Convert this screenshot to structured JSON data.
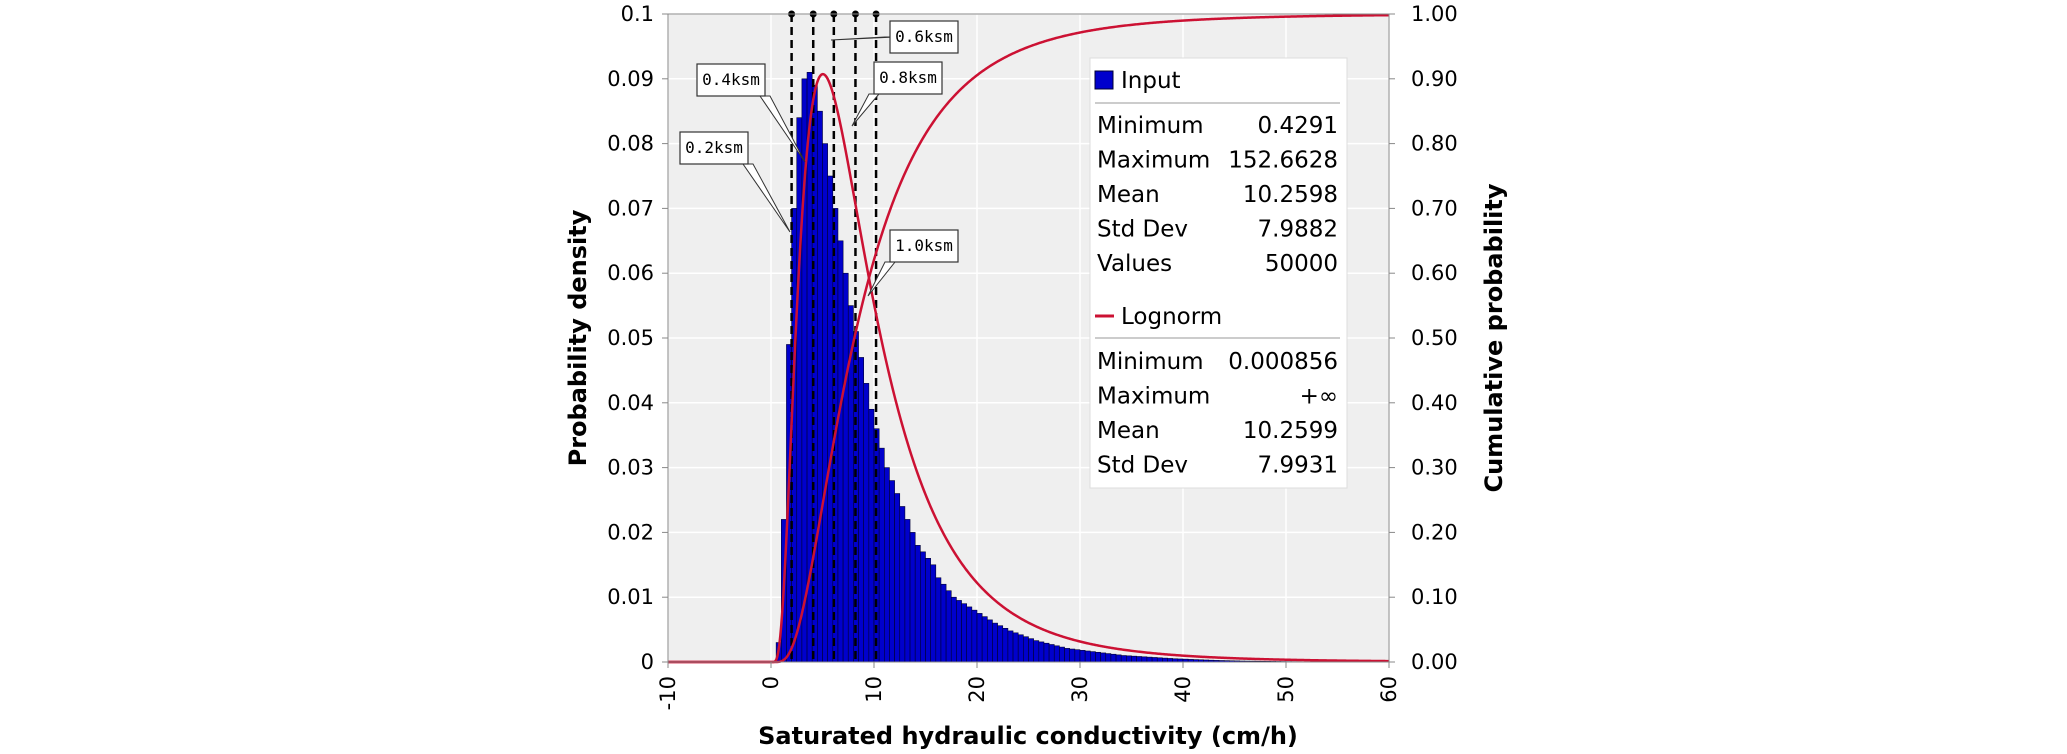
{
  "chart_data": {
    "type": "histogram",
    "xlabel": "Saturated hydraulic conductivity (cm/h)",
    "ylabel": "Probability density",
    "y2label": "Cumulative probability",
    "xlim": [
      -10,
      60
    ],
    "ylim": [
      0,
      0.1
    ],
    "y2lim": [
      0,
      1
    ],
    "x_ticks": [
      "-10",
      "0",
      "10",
      "20",
      "30",
      "40",
      "50",
      "60"
    ],
    "y_ticks": [
      "0",
      "0.01",
      "0.02",
      "0.03",
      "0.04",
      "0.05",
      "0.06",
      "0.07",
      "0.08",
      "0.09",
      "0.1"
    ],
    "y2_ticks": [
      "0.00",
      "0.10",
      "0.20",
      "0.30",
      "0.40",
      "0.50",
      "0.60",
      "0.70",
      "0.80",
      "0.90",
      "1.00"
    ],
    "grid": true,
    "bar_color": "#0000cc",
    "curve_color": "#cc1133",
    "histogram": {
      "name": "Input",
      "bin_start": 0.5,
      "bin_width": 0.5,
      "values": [
        0.003,
        0.022,
        0.049,
        0.07,
        0.084,
        0.09,
        0.091,
        0.089,
        0.085,
        0.08,
        0.075,
        0.07,
        0.065,
        0.06,
        0.055,
        0.051,
        0.047,
        0.043,
        0.039,
        0.036,
        0.033,
        0.03,
        0.028,
        0.026,
        0.024,
        0.022,
        0.02,
        0.018,
        0.017,
        0.016,
        0.015,
        0.013,
        0.012,
        0.011,
        0.01,
        0.0095,
        0.009,
        0.0085,
        0.008,
        0.0075,
        0.007,
        0.0065,
        0.006,
        0.0056,
        0.0052,
        0.0048,
        0.0045,
        0.0042,
        0.0039,
        0.0036,
        0.0033,
        0.0031,
        0.0029,
        0.0027,
        0.0025,
        0.0023,
        0.0021,
        0.002,
        0.0019,
        0.0018,
        0.0017,
        0.0016,
        0.0015,
        0.0014,
        0.0013,
        0.0012,
        0.0011,
        0.001,
        0.00095,
        0.0009,
        0.00085,
        0.0008,
        0.00075,
        0.0007,
        0.00065,
        0.0006,
        0.00055,
        0.0005,
        0.00047,
        0.00044,
        0.0004,
        0.00037,
        0.00034,
        0.00031,
        0.00028,
        0.00025,
        0.00023,
        0.00021,
        0.00019,
        0.00017,
        0.00015,
        0.00014,
        0.00013,
        0.00012,
        0.00011,
        0.0001,
        9e-05,
        8e-05,
        7e-05,
        6e-05,
        5e-05,
        4e-05
      ]
    },
    "fit": {
      "name": "Lognorm",
      "mean": 10.2599,
      "std_dev": 7.9931
    },
    "markers": [
      {
        "label": "0.2ksm",
        "x": 2.0
      },
      {
        "label": "0.4ksm",
        "x": 4.1
      },
      {
        "label": "0.6ksm",
        "x": 6.1
      },
      {
        "label": "0.8ksm",
        "x": 8.2
      },
      {
        "label": "1.0ksm",
        "x": 10.2
      }
    ],
    "legend": {
      "input_name": "Input",
      "input_stats": [
        {
          "label": "Minimum",
          "value": "0.4291"
        },
        {
          "label": "Maximum",
          "value": "152.6628"
        },
        {
          "label": "Mean",
          "value": "10.2598"
        },
        {
          "label": "Std Dev",
          "value": "7.9882"
        },
        {
          "label": "Values",
          "value": "50000"
        }
      ],
      "fit_name": "Lognorm",
      "fit_stats": [
        {
          "label": "Minimum",
          "value": "0.000856"
        },
        {
          "label": "Maximum",
          "value": "+∞"
        },
        {
          "label": "Mean",
          "value": "10.2599"
        },
        {
          "label": "Std Dev",
          "value": "7.9931"
        }
      ]
    }
  }
}
